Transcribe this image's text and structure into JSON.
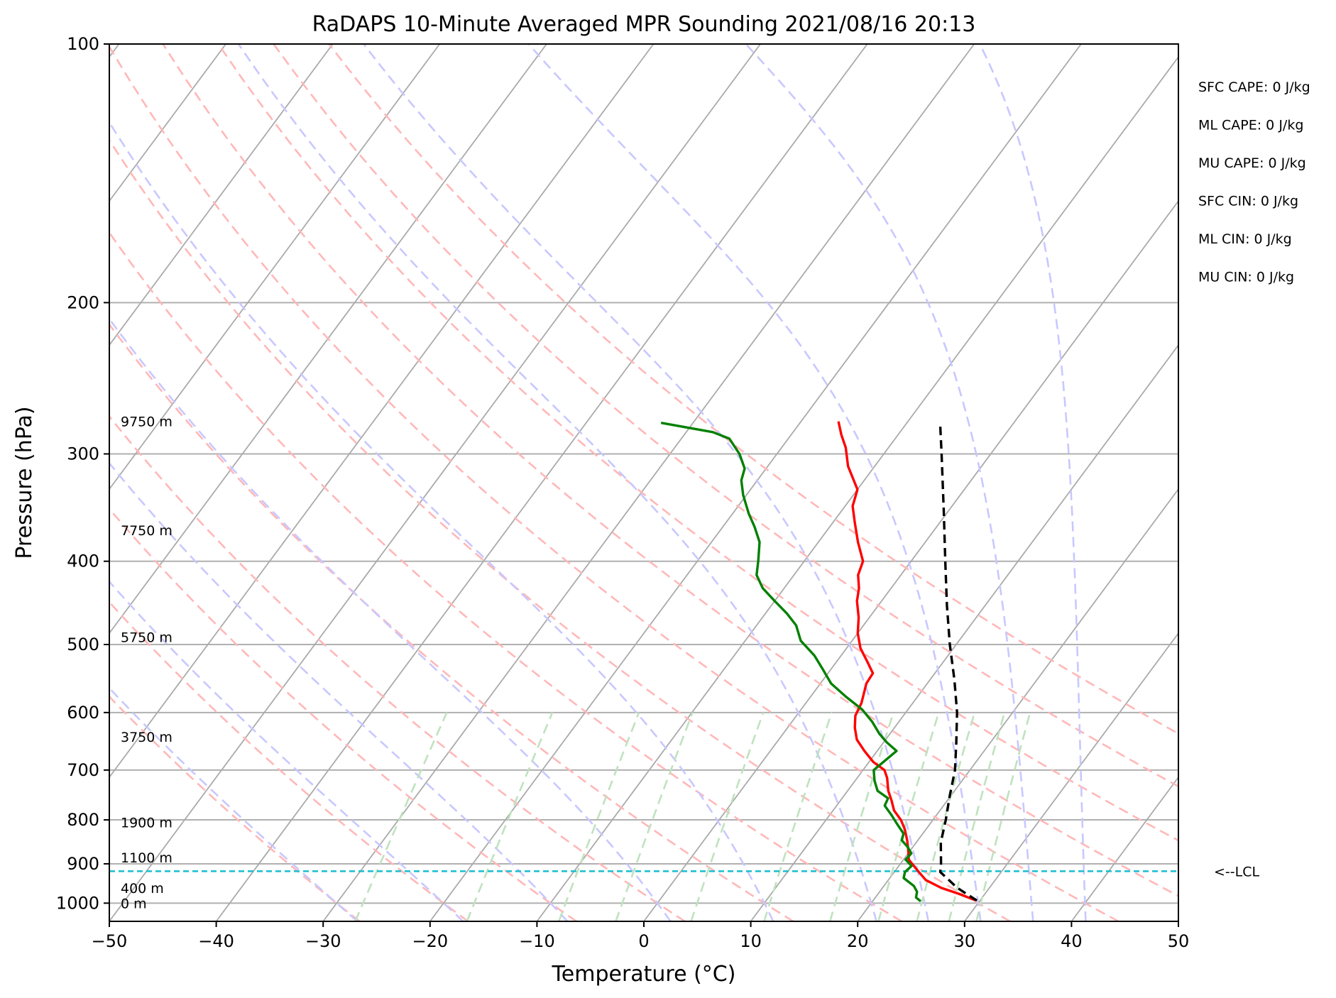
{
  "chart_data": {
    "type": "line",
    "subtype": "skew-T log-P sounding",
    "title": "RaDAPS 10-Minute Averaged MPR Sounding 2021/08/16 20:13",
    "xlabel": "Temperature (°C)",
    "ylabel": "Pressure (hPa)",
    "xlim": [
      -50,
      50
    ],
    "ylim_hpa": [
      1050,
      100
    ],
    "y_scale": "log",
    "grid": true,
    "x_ticks": [
      -50,
      -40,
      -30,
      -20,
      -10,
      0,
      10,
      20,
      30,
      40,
      50
    ],
    "x_tick_labels": [
      "−50",
      "−40",
      "−30",
      "−20",
      "−10",
      "0",
      "10",
      "20",
      "30",
      "40",
      "50"
    ],
    "y_ticks": [
      1000,
      900,
      800,
      700,
      600,
      500,
      400,
      300,
      200,
      100
    ],
    "y_tick_labels": [
      "1000",
      "900",
      "800",
      "700",
      "600",
      "500",
      "400",
      "300",
      "200",
      "100"
    ],
    "series": [
      {
        "role": "temperature",
        "color": "#ff0000",
        "style": "solid",
        "points": [
          [
            992,
            29.5
          ],
          [
            975,
            27.5
          ],
          [
            960,
            25.5
          ],
          [
            940,
            23.5
          ],
          [
            915,
            22.0
          ],
          [
            890,
            20.5
          ],
          [
            865,
            19.7
          ],
          [
            845,
            19.0
          ],
          [
            820,
            18.0
          ],
          [
            800,
            17.0
          ],
          [
            780,
            15.7
          ],
          [
            760,
            14.8
          ],
          [
            740,
            13.8
          ],
          [
            715,
            12.8
          ],
          [
            700,
            12.0
          ],
          [
            685,
            10.4
          ],
          [
            665,
            8.8
          ],
          [
            645,
            7.3
          ],
          [
            625,
            6.3
          ],
          [
            605,
            5.5
          ],
          [
            585,
            5.2
          ],
          [
            568,
            4.7
          ],
          [
            555,
            4.3
          ],
          [
            540,
            4.2
          ],
          [
            525,
            3.0
          ],
          [
            505,
            1.3
          ],
          [
            485,
            0.0
          ],
          [
            465,
            -1.0
          ],
          [
            445,
            -2.3
          ],
          [
            430,
            -3.0
          ],
          [
            415,
            -4.0
          ],
          [
            400,
            -4.5
          ],
          [
            380,
            -6.3
          ],
          [
            360,
            -8.0
          ],
          [
            345,
            -9.3
          ],
          [
            330,
            -10.0
          ],
          [
            310,
            -12.5
          ],
          [
            295,
            -14.0
          ],
          [
            285,
            -15.3
          ],
          [
            275,
            -16.5
          ]
        ]
      },
      {
        "role": "dewpoint",
        "color": "#008000",
        "style": "solid",
        "points": [
          [
            995,
            24.5
          ],
          [
            985,
            23.8
          ],
          [
            970,
            23.5
          ],
          [
            955,
            22.8
          ],
          [
            935,
            21.3
          ],
          [
            920,
            21.0
          ],
          [
            905,
            21.2
          ],
          [
            890,
            20.2
          ],
          [
            875,
            20.3
          ],
          [
            860,
            19.5
          ],
          [
            845,
            18.5
          ],
          [
            830,
            18.2
          ],
          [
            810,
            17.0
          ],
          [
            790,
            15.8
          ],
          [
            770,
            14.5
          ],
          [
            755,
            14.3
          ],
          [
            740,
            12.8
          ],
          [
            720,
            11.8
          ],
          [
            700,
            11.0
          ],
          [
            665,
            11.8
          ],
          [
            650,
            10.3
          ],
          [
            635,
            9.0
          ],
          [
            615,
            7.5
          ],
          [
            595,
            5.7
          ],
          [
            575,
            3.3
          ],
          [
            555,
            1.0
          ],
          [
            535,
            -0.7
          ],
          [
            515,
            -2.5
          ],
          [
            495,
            -4.8
          ],
          [
            475,
            -6.3
          ],
          [
            460,
            -8.0
          ],
          [
            445,
            -10.0
          ],
          [
            430,
            -12.0
          ],
          [
            415,
            -13.5
          ],
          [
            400,
            -14.3
          ],
          [
            380,
            -15.5
          ],
          [
            365,
            -17.0
          ],
          [
            352,
            -18.5
          ],
          [
            335,
            -20.3
          ],
          [
            322,
            -21.5
          ],
          [
            312,
            -22.0
          ],
          [
            300,
            -23.5
          ],
          [
            288,
            -25.5
          ],
          [
            283,
            -27.5
          ],
          [
            276,
            -33.0
          ]
        ]
      },
      {
        "role": "parcel profile",
        "color": "#000000",
        "style": "dashed",
        "points": [
          [
            993,
            29.7
          ],
          [
            960,
            27.0
          ],
          [
            920,
            24.3
          ],
          [
            900,
            23.8
          ],
          [
            850,
            22.3
          ],
          [
            800,
            21.2
          ],
          [
            750,
            19.9
          ],
          [
            700,
            18.6
          ],
          [
            650,
            16.8
          ],
          [
            600,
            14.8
          ],
          [
            550,
            12.3
          ],
          [
            500,
            9.4
          ],
          [
            450,
            6.4
          ],
          [
            400,
            3.2
          ],
          [
            350,
            -0.4
          ],
          [
            300,
            -4.6
          ],
          [
            278,
            -6.7
          ]
        ]
      }
    ],
    "lcl": {
      "pressure_hpa": 918,
      "label": "<--LCL",
      "color": "#17becf"
    },
    "height_labels": [
      {
        "text": "0 m",
        "pressure_hpa": 1000
      },
      {
        "text": "400 m",
        "pressure_hpa": 960
      },
      {
        "text": "1100 m",
        "pressure_hpa": 885
      },
      {
        "text": "1900 m",
        "pressure_hpa": 805
      },
      {
        "text": "3750 m",
        "pressure_hpa": 640
      },
      {
        "text": "5750 m",
        "pressure_hpa": 490
      },
      {
        "text": "7750 m",
        "pressure_hpa": 368
      },
      {
        "text": "9750 m",
        "pressure_hpa": 275
      }
    ],
    "indices": [
      "SFC CAPE: 0 J/kg",
      "ML CAPE: 0 J/kg",
      "MU CAPE: 0 J/kg",
      "SFC CIN: 0 J/kg",
      "ML CIN: 0 J/kg",
      "MU CIN: 0 J/kg"
    ],
    "background_lines": {
      "isotherms": {
        "color": "#aaaaaa",
        "style": "solid",
        "temps": [
          -120,
          -110,
          -100,
          -90,
          -80,
          -70,
          -60,
          -50,
          -40,
          -30,
          -20,
          -10,
          0,
          10,
          20,
          30,
          40,
          50
        ]
      },
      "dry_adiabats": {
        "color": "#ffb8b8",
        "style": "dashed",
        "theta_c": [
          -30,
          -20,
          -10,
          0,
          10,
          20,
          30,
          40,
          50,
          60,
          70,
          80
        ]
      },
      "moist_adiabats": {
        "color": "#c8c8ff",
        "style": "dashed",
        "start_temp_c_at_1000hpa": [
          -30,
          -20,
          -10,
          0,
          10,
          20,
          25,
          30,
          35,
          40
        ]
      },
      "mixing_ratio_lines": {
        "color": "#bfe2bf",
        "style": "dashed",
        "top_hpa": 600
      }
    }
  }
}
